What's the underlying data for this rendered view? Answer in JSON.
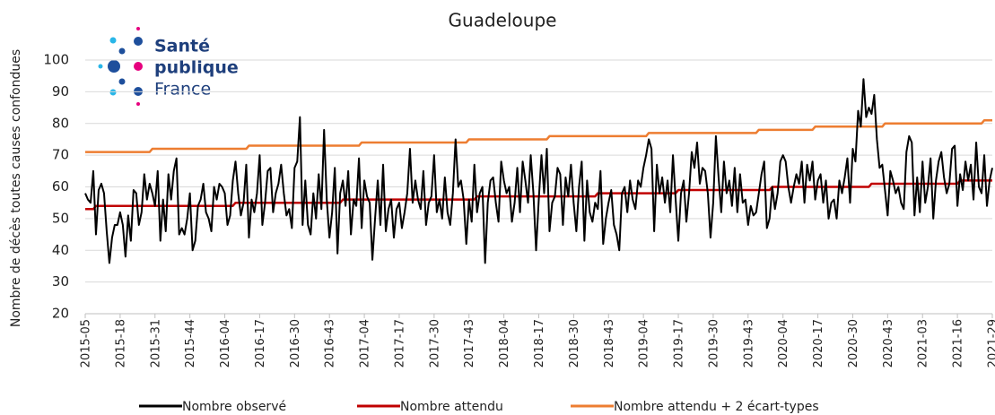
{
  "chart_data": {
    "type": "line",
    "title": "Guadeloupe",
    "y_label": "Nombre de décès toutes causes confondues",
    "logo": [
      "Santé",
      "publique",
      "France"
    ],
    "ylim": [
      20,
      100
    ],
    "yticks": [
      20,
      30,
      40,
      50,
      60,
      70,
      80,
      90,
      100
    ],
    "grid": true,
    "categories": [
      "2015-05",
      null,
      null,
      null,
      null,
      null,
      null,
      null,
      null,
      null,
      null,
      null,
      null,
      "2015-18",
      null,
      null,
      null,
      null,
      null,
      null,
      null,
      null,
      null,
      null,
      null,
      null,
      "2015-31",
      null,
      null,
      null,
      null,
      null,
      null,
      null,
      null,
      null,
      null,
      null,
      null,
      "2015-44",
      null,
      null,
      null,
      null,
      null,
      null,
      null,
      null,
      null,
      null,
      null,
      null,
      "2016-04",
      null,
      null,
      null,
      null,
      null,
      null,
      null,
      null,
      null,
      null,
      null,
      null,
      "2016-17",
      null,
      null,
      null,
      null,
      null,
      null,
      null,
      null,
      null,
      null,
      null,
      null,
      "2016-30",
      null,
      null,
      null,
      null,
      null,
      null,
      null,
      null,
      null,
      null,
      null,
      null,
      "2016-43",
      null,
      null,
      null,
      null,
      null,
      null,
      null,
      null,
      null,
      null,
      null,
      null,
      "2017-04",
      null,
      null,
      null,
      null,
      null,
      null,
      null,
      null,
      null,
      null,
      null,
      null,
      "2017-17",
      null,
      null,
      null,
      null,
      null,
      null,
      null,
      null,
      null,
      null,
      null,
      null,
      "2017-30",
      null,
      null,
      null,
      null,
      null,
      null,
      null,
      null,
      null,
      null,
      null,
      null,
      "2017-43",
      null,
      null,
      null,
      null,
      null,
      null,
      null,
      null,
      null,
      null,
      null,
      null,
      "2018-04",
      null,
      null,
      null,
      null,
      null,
      null,
      null,
      null,
      null,
      null,
      null,
      null,
      "2018-17",
      null,
      null,
      null,
      null,
      null,
      null,
      null,
      null,
      null,
      null,
      null,
      null,
      "2018-30",
      null,
      null,
      null,
      null,
      null,
      null,
      null,
      null,
      null,
      null,
      null,
      null,
      "2018-43",
      null,
      null,
      null,
      null,
      null,
      null,
      null,
      null,
      null,
      null,
      null,
      null,
      "2019-04",
      null,
      null,
      null,
      null,
      null,
      null,
      null,
      null,
      null,
      null,
      null,
      null,
      "2019-17",
      null,
      null,
      null,
      null,
      null,
      null,
      null,
      null,
      null,
      null,
      null,
      null,
      "2019-30",
      null,
      null,
      null,
      null,
      null,
      null,
      null,
      null,
      null,
      null,
      null,
      null,
      "2019-43",
      null,
      null,
      null,
      null,
      null,
      null,
      null,
      null,
      null,
      null,
      null,
      null,
      "2020-04",
      null,
      null,
      null,
      null,
      null,
      null,
      null,
      null,
      null,
      null,
      null,
      null,
      "2020-17",
      null,
      null,
      null,
      null,
      null,
      null,
      null,
      null,
      null,
      null,
      null,
      null,
      "2020-30",
      null,
      null,
      null,
      null,
      null,
      null,
      null,
      null,
      null,
      null,
      null,
      null,
      "2020-43",
      null,
      null,
      null,
      null,
      null,
      null,
      null,
      null,
      null,
      null,
      null,
      null,
      "2021-03",
      null,
      null,
      null,
      null,
      null,
      null,
      null,
      null,
      null,
      null,
      null,
      null,
      "2021-16",
      null,
      null,
      null,
      null,
      null,
      null,
      null,
      null,
      null,
      null,
      null,
      null,
      "2021-29"
    ],
    "series": [
      {
        "name": "Nombre observé",
        "color": "#000000",
        "values": [
          58,
          56,
          55,
          65,
          45,
          59,
          61,
          58,
          46,
          36,
          44,
          48,
          48,
          52,
          48,
          38,
          51,
          43,
          59,
          58,
          48,
          52,
          64,
          56,
          61,
          58,
          54,
          65,
          43,
          56,
          46,
          64,
          56,
          65,
          69,
          45,
          47,
          45,
          50,
          58,
          40,
          43,
          54,
          56,
          61,
          52,
          50,
          46,
          60,
          56,
          61,
          60,
          58,
          48,
          51,
          62,
          68,
          58,
          51,
          55,
          67,
          44,
          56,
          52,
          58,
          70,
          48,
          55,
          65,
          66,
          52,
          58,
          61,
          67,
          58,
          51,
          53,
          47,
          66,
          68,
          82,
          48,
          62,
          48,
          45,
          58,
          50,
          64,
          53,
          78,
          56,
          44,
          52,
          66,
          39,
          58,
          62,
          54,
          65,
          45,
          56,
          54,
          69,
          47,
          62,
          57,
          55,
          37,
          50,
          62,
          48,
          67,
          46,
          53,
          56,
          44,
          53,
          55,
          47,
          52,
          58,
          72,
          55,
          62,
          56,
          53,
          65,
          48,
          55,
          57,
          70,
          52,
          56,
          50,
          63,
          52,
          48,
          58,
          75,
          60,
          62,
          56,
          42,
          56,
          49,
          67,
          52,
          58,
          60,
          36,
          55,
          62,
          63,
          55,
          49,
          68,
          62,
          58,
          60,
          49,
          55,
          66,
          52,
          68,
          62,
          55,
          70,
          58,
          40,
          56,
          70,
          58,
          72,
          46,
          55,
          57,
          66,
          64,
          48,
          63,
          57,
          67,
          55,
          46,
          60,
          68,
          43,
          62,
          52,
          49,
          55,
          53,
          65,
          42,
          50,
          55,
          59,
          48,
          45,
          40,
          58,
          60,
          52,
          62,
          56,
          53,
          62,
          60,
          66,
          70,
          75,
          72,
          46,
          67,
          58,
          63,
          55,
          62,
          52,
          70,
          56,
          43,
          58,
          62,
          49,
          58,
          71,
          66,
          74,
          61,
          66,
          65,
          58,
          44,
          55,
          76,
          63,
          52,
          68,
          58,
          62,
          54,
          66,
          52,
          64,
          55,
          56,
          48,
          54,
          51,
          52,
          58,
          64,
          68,
          47,
          50,
          60,
          53,
          58,
          68,
          70,
          68,
          60,
          55,
          60,
          64,
          61,
          68,
          55,
          67,
          62,
          68,
          56,
          62,
          64,
          55,
          62,
          50,
          55,
          56,
          50,
          62,
          58,
          63,
          69,
          55,
          72,
          68,
          84,
          79,
          94,
          82,
          85,
          83,
          89,
          75,
          66,
          67,
          59,
          51,
          65,
          62,
          58,
          60,
          55,
          53,
          71,
          76,
          74,
          51,
          63,
          52,
          68,
          55,
          60,
          69,
          50,
          62,
          68,
          71,
          63,
          58,
          61,
          72,
          73,
          54,
          64,
          59,
          68,
          62,
          67,
          56,
          74,
          60,
          58,
          70,
          54,
          62,
          66
        ]
      },
      {
        "name": "Nombre attendu",
        "color": "#c00000",
        "values": [
          53,
          53,
          53,
          53,
          54,
          54,
          54,
          54,
          54,
          54,
          54,
          54,
          54,
          54,
          54,
          54,
          54,
          54,
          54,
          54,
          54,
          54,
          54,
          54,
          54,
          54,
          54,
          54,
          54,
          54,
          54,
          54,
          54,
          54,
          54,
          54,
          54,
          54,
          54,
          54,
          54,
          54,
          54,
          54,
          54,
          54,
          54,
          54,
          54,
          54,
          54,
          54,
          54,
          54,
          54,
          54,
          55,
          55,
          55,
          55,
          55,
          55,
          55,
          55,
          55,
          55,
          55,
          55,
          55,
          55,
          55,
          55,
          55,
          55,
          55,
          55,
          55,
          55,
          55,
          55,
          55,
          55,
          55,
          55,
          55,
          55,
          55,
          55,
          55,
          55,
          55,
          55,
          55,
          55,
          55,
          55,
          56,
          56,
          56,
          56,
          56,
          56,
          56,
          56,
          56,
          56,
          56,
          56,
          56,
          56,
          56,
          56,
          56,
          56,
          56,
          56,
          56,
          56,
          56,
          56,
          56,
          56,
          56,
          56,
          56,
          56,
          56,
          56,
          56,
          56,
          56,
          56,
          56,
          56,
          56,
          56,
          56,
          56,
          56,
          56,
          56,
          56,
          56,
          56,
          56,
          56,
          57,
          57,
          57,
          57,
          57,
          57,
          57,
          57,
          57,
          57,
          57,
          57,
          57,
          57,
          57,
          57,
          57,
          57,
          57,
          57,
          57,
          57,
          57,
          57,
          57,
          57,
          57,
          57,
          57,
          57,
          57,
          57,
          57,
          57,
          57,
          57,
          57,
          57,
          57,
          57,
          57,
          57,
          57,
          57,
          57,
          58,
          58,
          58,
          58,
          58,
          58,
          58,
          58,
          58,
          58,
          58,
          58,
          58,
          58,
          58,
          58,
          58,
          58,
          58,
          58,
          58,
          58,
          58,
          58,
          58,
          58,
          58,
          58,
          58,
          58,
          59,
          59,
          59,
          59,
          59,
          59,
          59,
          59,
          59,
          59,
          59,
          59,
          59,
          59,
          59,
          59,
          59,
          59,
          59,
          59,
          59,
          59,
          59,
          59,
          59,
          59,
          59,
          59,
          59,
          59,
          59,
          59,
          59,
          59,
          59,
          60,
          60,
          60,
          60,
          60,
          60,
          60,
          60,
          60,
          60,
          60,
          60,
          60,
          60,
          60,
          60,
          60,
          60,
          60,
          60,
          60,
          60,
          60,
          60,
          60,
          60,
          60,
          60,
          60,
          60,
          60,
          60,
          60,
          60,
          60,
          60,
          60,
          61,
          61,
          61,
          61,
          61,
          61,
          61,
          61,
          61,
          61,
          61,
          61,
          61,
          61,
          61,
          61,
          61,
          61,
          61,
          61,
          61,
          61,
          61,
          61,
          61,
          61,
          61,
          61,
          61,
          61,
          61,
          61,
          61,
          62,
          62,
          62,
          62,
          62,
          62,
          62,
          62,
          62,
          62,
          62,
          62,
          62
        ]
      },
      {
        "name": "Nombre attendu  + 2 écart-types",
        "color": "#ed7d31",
        "values": [
          71,
          71,
          71,
          71,
          71,
          71,
          71,
          71,
          71,
          71,
          71,
          71,
          71,
          71,
          71,
          71,
          71,
          71,
          71,
          71,
          71,
          71,
          71,
          71,
          71,
          72,
          72,
          72,
          72,
          72,
          72,
          72,
          72,
          72,
          72,
          72,
          72,
          72,
          72,
          72,
          72,
          72,
          72,
          72,
          72,
          72,
          72,
          72,
          72,
          72,
          72,
          72,
          72,
          72,
          72,
          72,
          72,
          72,
          72,
          72,
          72,
          73,
          73,
          73,
          73,
          73,
          73,
          73,
          73,
          73,
          73,
          73,
          73,
          73,
          73,
          73,
          73,
          73,
          73,
          73,
          73,
          73,
          73,
          73,
          73,
          73,
          73,
          73,
          73,
          73,
          73,
          73,
          73,
          73,
          73,
          73,
          73,
          73,
          73,
          73,
          73,
          73,
          73,
          74,
          74,
          74,
          74,
          74,
          74,
          74,
          74,
          74,
          74,
          74,
          74,
          74,
          74,
          74,
          74,
          74,
          74,
          74,
          74,
          74,
          74,
          74,
          74,
          74,
          74,
          74,
          74,
          74,
          74,
          74,
          74,
          74,
          74,
          74,
          74,
          74,
          74,
          74,
          74,
          75,
          75,
          75,
          75,
          75,
          75,
          75,
          75,
          75,
          75,
          75,
          75,
          75,
          75,
          75,
          75,
          75,
          75,
          75,
          75,
          75,
          75,
          75,
          75,
          75,
          75,
          75,
          75,
          75,
          75,
          76,
          76,
          76,
          76,
          76,
          76,
          76,
          76,
          76,
          76,
          76,
          76,
          76,
          76,
          76,
          76,
          76,
          76,
          76,
          76,
          76,
          76,
          76,
          76,
          76,
          76,
          76,
          76,
          76,
          76,
          76,
          76,
          76,
          76,
          76,
          76,
          76,
          77,
          77,
          77,
          77,
          77,
          77,
          77,
          77,
          77,
          77,
          77,
          77,
          77,
          77,
          77,
          77,
          77,
          77,
          77,
          77,
          77,
          77,
          77,
          77,
          77,
          77,
          77,
          77,
          77,
          77,
          77,
          77,
          77,
          77,
          77,
          77,
          77,
          77,
          77,
          77,
          77,
          78,
          78,
          78,
          78,
          78,
          78,
          78,
          78,
          78,
          78,
          78,
          78,
          78,
          78,
          78,
          78,
          78,
          78,
          78,
          78,
          78,
          79,
          79,
          79,
          79,
          79,
          79,
          79,
          79,
          79,
          79,
          79,
          79,
          79,
          79,
          79,
          79,
          79,
          79,
          79,
          79,
          79,
          79,
          79,
          79,
          79,
          79,
          80,
          80,
          80,
          80,
          80,
          80,
          80,
          80,
          80,
          80,
          80,
          80,
          80,
          80,
          80,
          80,
          80,
          80,
          80,
          80,
          80,
          80,
          80,
          80,
          80,
          80,
          80,
          80,
          80,
          80,
          80,
          80,
          80,
          80,
          80,
          80,
          80,
          81,
          81,
          81,
          81
        ]
      }
    ]
  }
}
